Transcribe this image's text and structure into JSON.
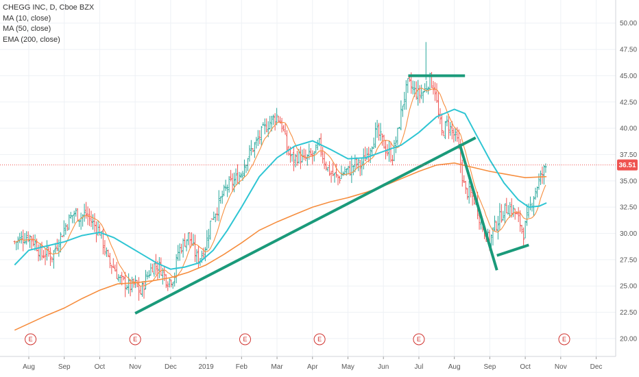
{
  "chart_data": {
    "type": "candlestick",
    "legend": {
      "symbol": "CHEGG INC, D, Cboe BZX",
      "indicators": [
        "MA (10, close)",
        "MA (50, close)",
        "EMA (200, close)"
      ]
    },
    "y_axis": {
      "ticks": [
        "50.00",
        "47.50",
        "45.00",
        "42.50",
        "40.00",
        "37.50",
        "35.00",
        "32.50",
        "30.00",
        "27.50",
        "25.00",
        "22.50",
        "20.00"
      ],
      "tick_values": [
        50,
        47.5,
        45,
        42.5,
        40,
        37.5,
        35,
        32.5,
        30,
        27.5,
        25,
        22.5,
        20
      ],
      "range": [
        18.3,
        52.2
      ],
      "current_price_label": "36.51",
      "current_price": 36.51
    },
    "x_axis": {
      "ticks": [
        "Aug",
        "Sep",
        "Oct",
        "Nov",
        "Dec",
        "2019",
        "Feb",
        "Mar",
        "Apr",
        "May",
        "Jun",
        "Jul",
        "Aug",
        "Sep",
        "Oct",
        "Nov",
        "Dec"
      ],
      "range_months": [
        0,
        16.55
      ]
    },
    "earnings_marker_label": "E",
    "earnings_months": [
      0.05,
      3.0,
      6.1,
      8.2,
      11.0,
      15.1
    ],
    "colors": {
      "up": "#26a69a",
      "down": "#ef5350",
      "ma10": "#f68d3d",
      "ma50": "#2ec5d3",
      "ema200": "#f68d3d",
      "trendline": "#1a9a7a",
      "price_line": "#ef5350",
      "grid": "#eef1f5",
      "earnings": "#d0312d"
    },
    "close_series": [
      [
        -0.4,
        29.2
      ],
      [
        -0.2,
        29.5
      ],
      [
        0,
        29.8
      ],
      [
        0.2,
        29.0
      ],
      [
        0.35,
        27.9
      ],
      [
        0.5,
        28.2
      ],
      [
        0.65,
        27.8
      ],
      [
        0.8,
        29.0
      ],
      [
        1.0,
        30.5
      ],
      [
        1.15,
        31.4
      ],
      [
        1.3,
        32.0
      ],
      [
        1.45,
        31.5
      ],
      [
        1.6,
        31.9
      ],
      [
        1.8,
        31.0
      ],
      [
        2.0,
        30.2
      ],
      [
        2.1,
        29.0
      ],
      [
        2.25,
        27.3
      ],
      [
        2.4,
        26.8
      ],
      [
        2.55,
        25.6
      ],
      [
        2.7,
        25.3
      ],
      [
        2.85,
        24.9
      ],
      [
        3.0,
        25.2
      ],
      [
        3.15,
        24.3
      ],
      [
        3.3,
        25.7
      ],
      [
        3.5,
        27.0
      ],
      [
        3.7,
        26.8
      ],
      [
        3.9,
        25.5
      ],
      [
        4.1,
        25.8
      ],
      [
        4.2,
        28.2
      ],
      [
        4.35,
        29.0
      ],
      [
        4.5,
        29.8
      ],
      [
        4.6,
        28.9
      ],
      [
        4.75,
        27.6
      ],
      [
        4.85,
        27.8
      ],
      [
        5.0,
        29.0
      ],
      [
        5.15,
        31.5
      ],
      [
        5.3,
        32.3
      ],
      [
        5.45,
        33.5
      ],
      [
        5.6,
        34.5
      ],
      [
        5.8,
        35.0
      ],
      [
        6.0,
        35.8
      ],
      [
        6.1,
        36.8
      ],
      [
        6.25,
        37.8
      ],
      [
        6.4,
        38.5
      ],
      [
        6.55,
        39.5
      ],
      [
        6.7,
        40.2
      ],
      [
        6.85,
        40.8
      ],
      [
        7.0,
        41.2
      ],
      [
        7.15,
        40.2
      ],
      [
        7.3,
        37.8
      ],
      [
        7.45,
        37.0
      ],
      [
        7.6,
        37.4
      ],
      [
        7.75,
        36.9
      ],
      [
        7.9,
        37.3
      ],
      [
        8.05,
        37.5
      ],
      [
        8.2,
        38.5
      ],
      [
        8.3,
        37.2
      ],
      [
        8.45,
        36.0
      ],
      [
        8.6,
        35.5
      ],
      [
        8.75,
        35.3
      ],
      [
        8.9,
        35.9
      ],
      [
        9.05,
        36.0
      ],
      [
        9.2,
        36.7
      ],
      [
        9.35,
        36.4
      ],
      [
        9.5,
        37.3
      ],
      [
        9.65,
        38.4
      ],
      [
        9.8,
        39.7
      ],
      [
        9.95,
        38.9
      ],
      [
        10.1,
        37.8
      ],
      [
        10.25,
        37.3
      ],
      [
        10.4,
        39.5
      ],
      [
        10.55,
        42.5
      ],
      [
        10.7,
        44.3
      ],
      [
        10.85,
        43.6
      ],
      [
        11.0,
        43.2
      ],
      [
        11.15,
        43.5
      ],
      [
        11.3,
        44.7
      ],
      [
        11.45,
        43.8
      ],
      [
        11.55,
        41.2
      ],
      [
        11.65,
        39.5
      ],
      [
        11.8,
        40.5
      ],
      [
        11.95,
        39.6
      ],
      [
        12.1,
        38.6
      ],
      [
        12.2,
        36.0
      ],
      [
        12.3,
        34.0
      ],
      [
        12.45,
        33.8
      ],
      [
        12.6,
        33.0
      ],
      [
        12.75,
        31.0
      ],
      [
        12.9,
        29.8
      ],
      [
        13.0,
        29.2
      ],
      [
        13.1,
        30.4
      ],
      [
        13.25,
        31.3
      ],
      [
        13.4,
        32.2
      ],
      [
        13.55,
        32.5
      ],
      [
        13.7,
        32.0
      ],
      [
        13.85,
        31.0
      ],
      [
        13.95,
        30.0
      ],
      [
        14.05,
        31.4
      ],
      [
        14.2,
        33.2
      ],
      [
        14.35,
        34.7
      ],
      [
        14.5,
        35.8
      ],
      [
        14.6,
        36.51
      ]
    ],
    "ma50_series": [
      [
        -0.4,
        27.0
      ],
      [
        0,
        28.4
      ],
      [
        0.5,
        28.8
      ],
      [
        1.0,
        29.2
      ],
      [
        1.5,
        29.8
      ],
      [
        2.0,
        30.1
      ],
      [
        2.4,
        29.6
      ],
      [
        2.8,
        28.8
      ],
      [
        3.2,
        28.0
      ],
      [
        3.6,
        27.2
      ],
      [
        4.0,
        26.6
      ],
      [
        4.4,
        26.8
      ],
      [
        4.8,
        27.2
      ],
      [
        5.2,
        28.4
      ],
      [
        5.6,
        30.3
      ],
      [
        6.0,
        32.5
      ],
      [
        6.5,
        35.4
      ],
      [
        7.0,
        37.2
      ],
      [
        7.5,
        38.3
      ],
      [
        8.0,
        38.8
      ],
      [
        8.5,
        38.0
      ],
      [
        9.0,
        37.1
      ],
      [
        9.5,
        37.2
      ],
      [
        10.0,
        37.8
      ],
      [
        10.5,
        38.4
      ],
      [
        11.0,
        39.6
      ],
      [
        11.5,
        41.1
      ],
      [
        12.0,
        41.8
      ],
      [
        12.3,
        41.4
      ],
      [
        12.6,
        39.5
      ],
      [
        13.0,
        37.0
      ],
      [
        13.4,
        34.8
      ],
      [
        13.8,
        33.2
      ],
      [
        14.1,
        32.5
      ],
      [
        14.4,
        32.6
      ],
      [
        14.6,
        32.9
      ]
    ],
    "ema200_series": [
      [
        -0.4,
        20.8
      ],
      [
        0.5,
        22.2
      ],
      [
        1.0,
        22.9
      ],
      [
        1.5,
        23.8
      ],
      [
        2.0,
        24.6
      ],
      [
        2.5,
        25.2
      ],
      [
        3.0,
        25.3
      ],
      [
        3.5,
        25.5
      ],
      [
        4.0,
        25.8
      ],
      [
        4.5,
        26.3
      ],
      [
        5.0,
        27.0
      ],
      [
        5.5,
        28.0
      ],
      [
        6.0,
        29.1
      ],
      [
        6.5,
        30.3
      ],
      [
        7.0,
        31.1
      ],
      [
        7.5,
        31.8
      ],
      [
        8.0,
        32.5
      ],
      [
        8.5,
        33.0
      ],
      [
        9.0,
        33.4
      ],
      [
        9.5,
        33.9
      ],
      [
        10.0,
        34.5
      ],
      [
        10.5,
        35.2
      ],
      [
        11.0,
        35.9
      ],
      [
        11.5,
        36.5
      ],
      [
        12.0,
        36.7
      ],
      [
        12.5,
        36.3
      ],
      [
        13.0,
        35.9
      ],
      [
        13.5,
        35.6
      ],
      [
        14.0,
        35.3
      ],
      [
        14.6,
        35.4
      ]
    ],
    "trendlines": [
      {
        "points": [
          [
            3.0,
            22.4
          ],
          [
            12.6,
            39.1
          ]
        ]
      },
      {
        "points": [
          [
            10.7,
            45.0
          ],
          [
            12.3,
            45.0
          ]
        ]
      },
      {
        "points": [
          [
            12.15,
            38.5
          ],
          [
            13.2,
            26.5
          ]
        ]
      },
      {
        "points": [
          [
            13.2,
            27.9
          ],
          [
            14.1,
            28.9
          ]
        ]
      }
    ]
  }
}
